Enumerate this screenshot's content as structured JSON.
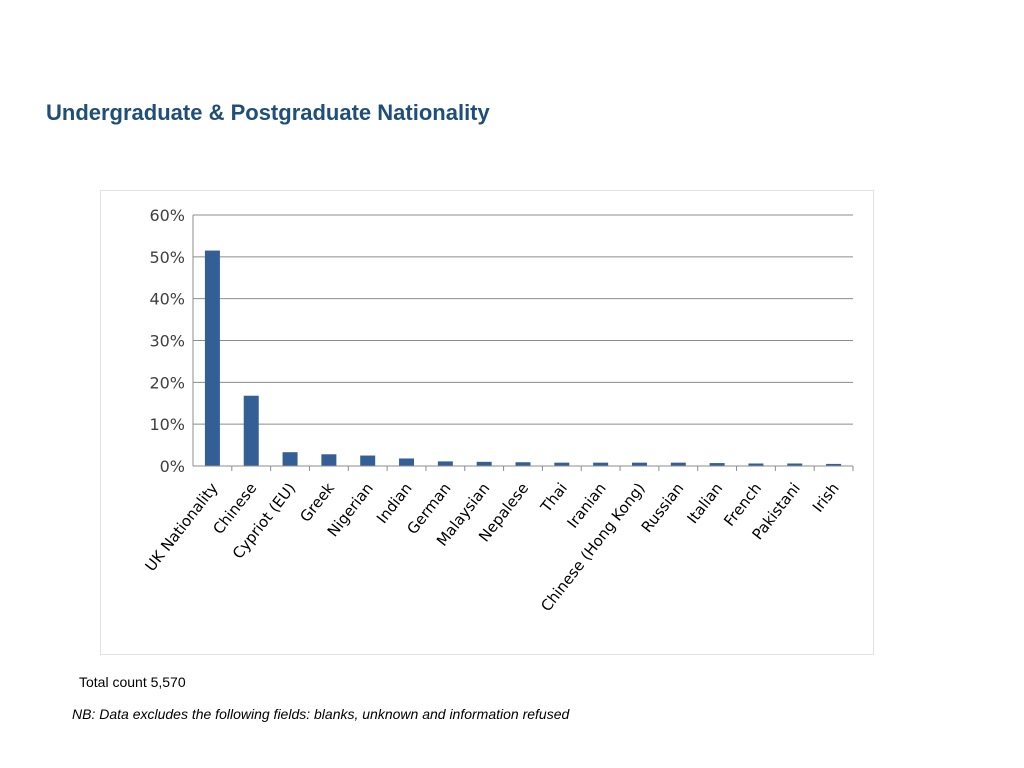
{
  "page": {
    "title": "Undergraduate & Postgraduate Nationality",
    "total_count": "Total count 5,570",
    "note": "NB: Data excludes the following fields: blanks, unknown and information refused"
  },
  "colors": {
    "title": "#1f4e79",
    "bar": "#345f96",
    "grid": "#8c8c8c"
  },
  "chart_data": {
    "type": "bar",
    "title": "",
    "xlabel": "",
    "ylabel": "",
    "ylim": [
      0,
      60
    ],
    "y_ticks": [
      "0%",
      "10%",
      "20%",
      "30%",
      "40%",
      "50%",
      "60%"
    ],
    "grid": true,
    "legend": "none",
    "categories": [
      "UK Nationality",
      "Chinese",
      "Cypriot (EU)",
      "Greek",
      "Nigerian",
      "Indian",
      "German",
      "Malaysian",
      "Nepalese",
      "Thai",
      "Iranian",
      "Chinese (Hong Kong)",
      "Russian",
      "Italian",
      "French",
      "Pakistani",
      "Irish"
    ],
    "series": [
      {
        "values": [
          51.5,
          16.8,
          3.3,
          2.8,
          2.5,
          1.8,
          1.1,
          1.0,
          0.9,
          0.8,
          0.8,
          0.8,
          0.8,
          0.7,
          0.6,
          0.6,
          0.5
        ]
      }
    ]
  }
}
